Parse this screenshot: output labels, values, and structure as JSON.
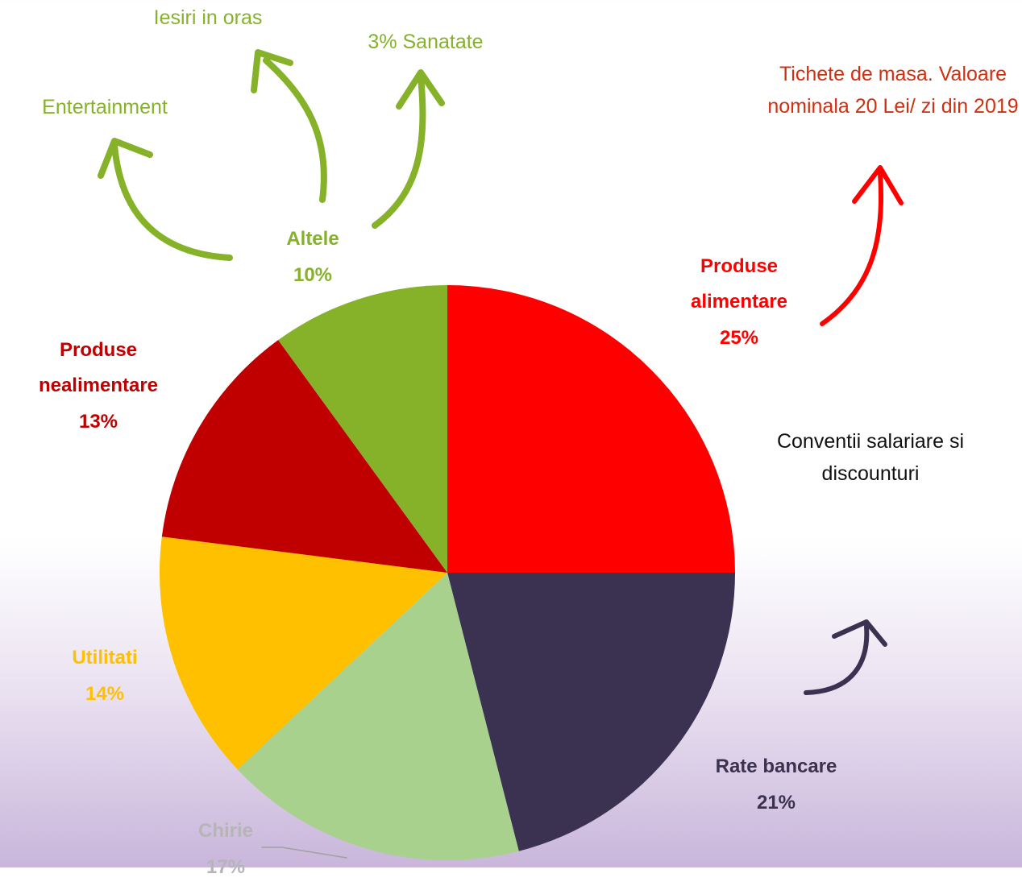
{
  "chart_data": {
    "type": "pie",
    "categories": [
      "Produse alimentare",
      "Rate bancare",
      "Chirie",
      "Utilitati",
      "Produse nealimentare",
      "Altele"
    ],
    "values": [
      25,
      21,
      17,
      14,
      13,
      10
    ],
    "value_labels": [
      "25%",
      "21%",
      "17%",
      "14%",
      "13%",
      "10%"
    ],
    "colors": [
      "#ff0000",
      "#3b3150",
      "#a9d18e",
      "#ffc000",
      "#c00000",
      "#86b22a"
    ],
    "annotations": [
      "Iesiri in oras",
      "3% Sanatate",
      "Entertainment",
      "Tichete de masa. Valoare nominala 20 Lei/ zi din 2019",
      "Conventii salariare si discounturi"
    ]
  }
}
